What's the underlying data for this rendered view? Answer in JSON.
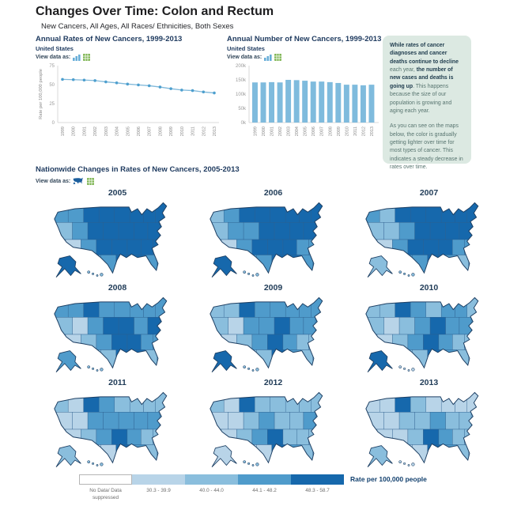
{
  "page": {
    "title": "Changes Over Time: Colon and Rectum",
    "subtitle": "New Cancers, All Ages, All Races/ Ethnicities, Both Sexes"
  },
  "view_data_label": "View data as:",
  "icons": {
    "bar_chart_icon_color": "#68aed8",
    "table_icon_color": "#7cb34f",
    "map_icon_color": "#1c5f9e"
  },
  "info_box": {
    "bold1": "While rates of cancer diagnoses and cancer deaths continue to decline",
    "normal1": " each year, ",
    "bold2": "the number of new cases and deaths is going up",
    "normal2": ". This happens because the size of our population is growing and aging each year.",
    "para2": "As you can see on the maps below, the color is gradually getting lighter over time for most types of cancer. This indicates a steady decrease in rates over time."
  },
  "legend": {
    "no_data_line1": "No Data/ Data",
    "no_data_line2": "suppressed",
    "bins": [
      "30.3 - 39.9",
      "40.0 - 44.0",
      "44.1 - 48.2",
      "48.3 - 58.7"
    ],
    "colors": [
      "#ffffff",
      "#b8d4e8",
      "#8abedd",
      "#4f9bcb",
      "#1668ac"
    ],
    "title": "Rate per 100,000 people"
  },
  "chart_data": [
    {
      "type": "line",
      "title": "Annual Rates of New Cancers, 1999-2013",
      "subtitle": "United States",
      "ylabel": "Rate per 100,000 people",
      "x": [
        "1999",
        "2000",
        "2001",
        "2002",
        "2003",
        "2004",
        "2005",
        "2006",
        "2007",
        "2008",
        "2009",
        "2010",
        "2011",
        "2012",
        "2013"
      ],
      "values": [
        56.9,
        56.5,
        56.0,
        55.3,
        53.6,
        52.3,
        50.7,
        49.6,
        48.5,
        46.8,
        44.6,
        42.8,
        42.1,
        40.3,
        39.0
      ],
      "ylim": [
        0,
        75
      ],
      "yticks": [
        0,
        25,
        50,
        75
      ],
      "line_color": "#7fb8da",
      "marker_color": "#4d9fce",
      "grid": false,
      "legend_position": "none"
    },
    {
      "type": "bar",
      "title": "Annual Number of New Cancers, 1999-2013",
      "subtitle": "United States",
      "x": [
        "1999",
        "2000",
        "2001",
        "2002",
        "2003",
        "2004",
        "2005",
        "2006",
        "2007",
        "2008",
        "2009",
        "2010",
        "2011",
        "2012",
        "2013"
      ],
      "values_thousands": [
        141,
        141,
        142,
        141,
        150,
        149,
        147,
        144,
        144,
        142,
        139,
        133,
        133,
        131,
        133
      ],
      "ylim_thousands": [
        0,
        200
      ],
      "yticks": [
        "0k",
        "50k",
        "100k",
        "150k",
        "200k"
      ],
      "bar_color": "#7fbbdd",
      "grid": false,
      "legend_position": "none"
    },
    {
      "type": "heatmap",
      "title": "Nationwide Changes in Rates of New Cancers, 2005-2013",
      "note": "Choropleth maps of the United States, one per year; shade index 0=no data (white), 1=30.3-39.9, 2=40.0-44.0, 3=44.1-48.2, 4=48.3-58.7 rate per 100,000 people. Grid is 4 rows x 8 cols west-to-east, north-to-south, plus Alaska and Hawaii.",
      "years": [
        "2005",
        "2006",
        "2007",
        "2008",
        "2009",
        "2010",
        "2011",
        "2012",
        "2013"
      ],
      "shades": {
        "2005": [
          3,
          3,
          4,
          4,
          4,
          4,
          4,
          4,
          2,
          3,
          4,
          4,
          4,
          4,
          4,
          4,
          3,
          1,
          3,
          4,
          4,
          4,
          4,
          4,
          2,
          2,
          3,
          3,
          4,
          4,
          3,
          3,
          4,
          2
        ],
        "2006": [
          2,
          3,
          4,
          4,
          4,
          4,
          4,
          4,
          2,
          3,
          3,
          4,
          4,
          4,
          4,
          4,
          3,
          1,
          3,
          4,
          4,
          4,
          3,
          3,
          1,
          2,
          3,
          3,
          4,
          4,
          3,
          3,
          4,
          2
        ],
        "2007": [
          3,
          2,
          4,
          4,
          4,
          4,
          4,
          4,
          2,
          2,
          3,
          4,
          4,
          4,
          4,
          4,
          2,
          1,
          3,
          4,
          4,
          4,
          3,
          3,
          1,
          2,
          3,
          3,
          4,
          3,
          2,
          3,
          2,
          2
        ],
        "2008": [
          3,
          3,
          4,
          3,
          3,
          3,
          3,
          3,
          2,
          1,
          3,
          4,
          4,
          3,
          4,
          4,
          3,
          1,
          2,
          3,
          4,
          4,
          3,
          3,
          1,
          1,
          2,
          2,
          4,
          4,
          2,
          2,
          3,
          2
        ],
        "2009": [
          2,
          2,
          4,
          3,
          3,
          3,
          3,
          3,
          2,
          1,
          3,
          3,
          4,
          3,
          3,
          3,
          2,
          1,
          2,
          3,
          4,
          3,
          2,
          2,
          1,
          1,
          2,
          2,
          4,
          3,
          2,
          2,
          4,
          2
        ],
        "2010": [
          2,
          2,
          4,
          3,
          2,
          3,
          3,
          2,
          2,
          1,
          2,
          3,
          4,
          3,
          3,
          3,
          2,
          1,
          2,
          3,
          4,
          3,
          2,
          2,
          1,
          1,
          2,
          2,
          4,
          3,
          2,
          1,
          4,
          1
        ],
        "2011": [
          2,
          1,
          4,
          3,
          2,
          2,
          2,
          2,
          1,
          1,
          3,
          3,
          3,
          3,
          3,
          3,
          0,
          1,
          2,
          3,
          4,
          3,
          2,
          2,
          1,
          1,
          1,
          1,
          4,
          3,
          2,
          2,
          2,
          2
        ],
        "2012": [
          2,
          1,
          4,
          2,
          2,
          2,
          2,
          2,
          1,
          1,
          2,
          3,
          2,
          2,
          3,
          3,
          0,
          1,
          2,
          3,
          4,
          2,
          2,
          2,
          1,
          1,
          1,
          1,
          4,
          3,
          2,
          2,
          1,
          2
        ],
        "2013": [
          1,
          1,
          4,
          2,
          1,
          1,
          1,
          1,
          1,
          1,
          2,
          2,
          3,
          2,
          2,
          2,
          0,
          1,
          1,
          2,
          4,
          3,
          2,
          2,
          1,
          1,
          1,
          1,
          4,
          3,
          2,
          1,
          2,
          1
        ]
      }
    }
  ]
}
